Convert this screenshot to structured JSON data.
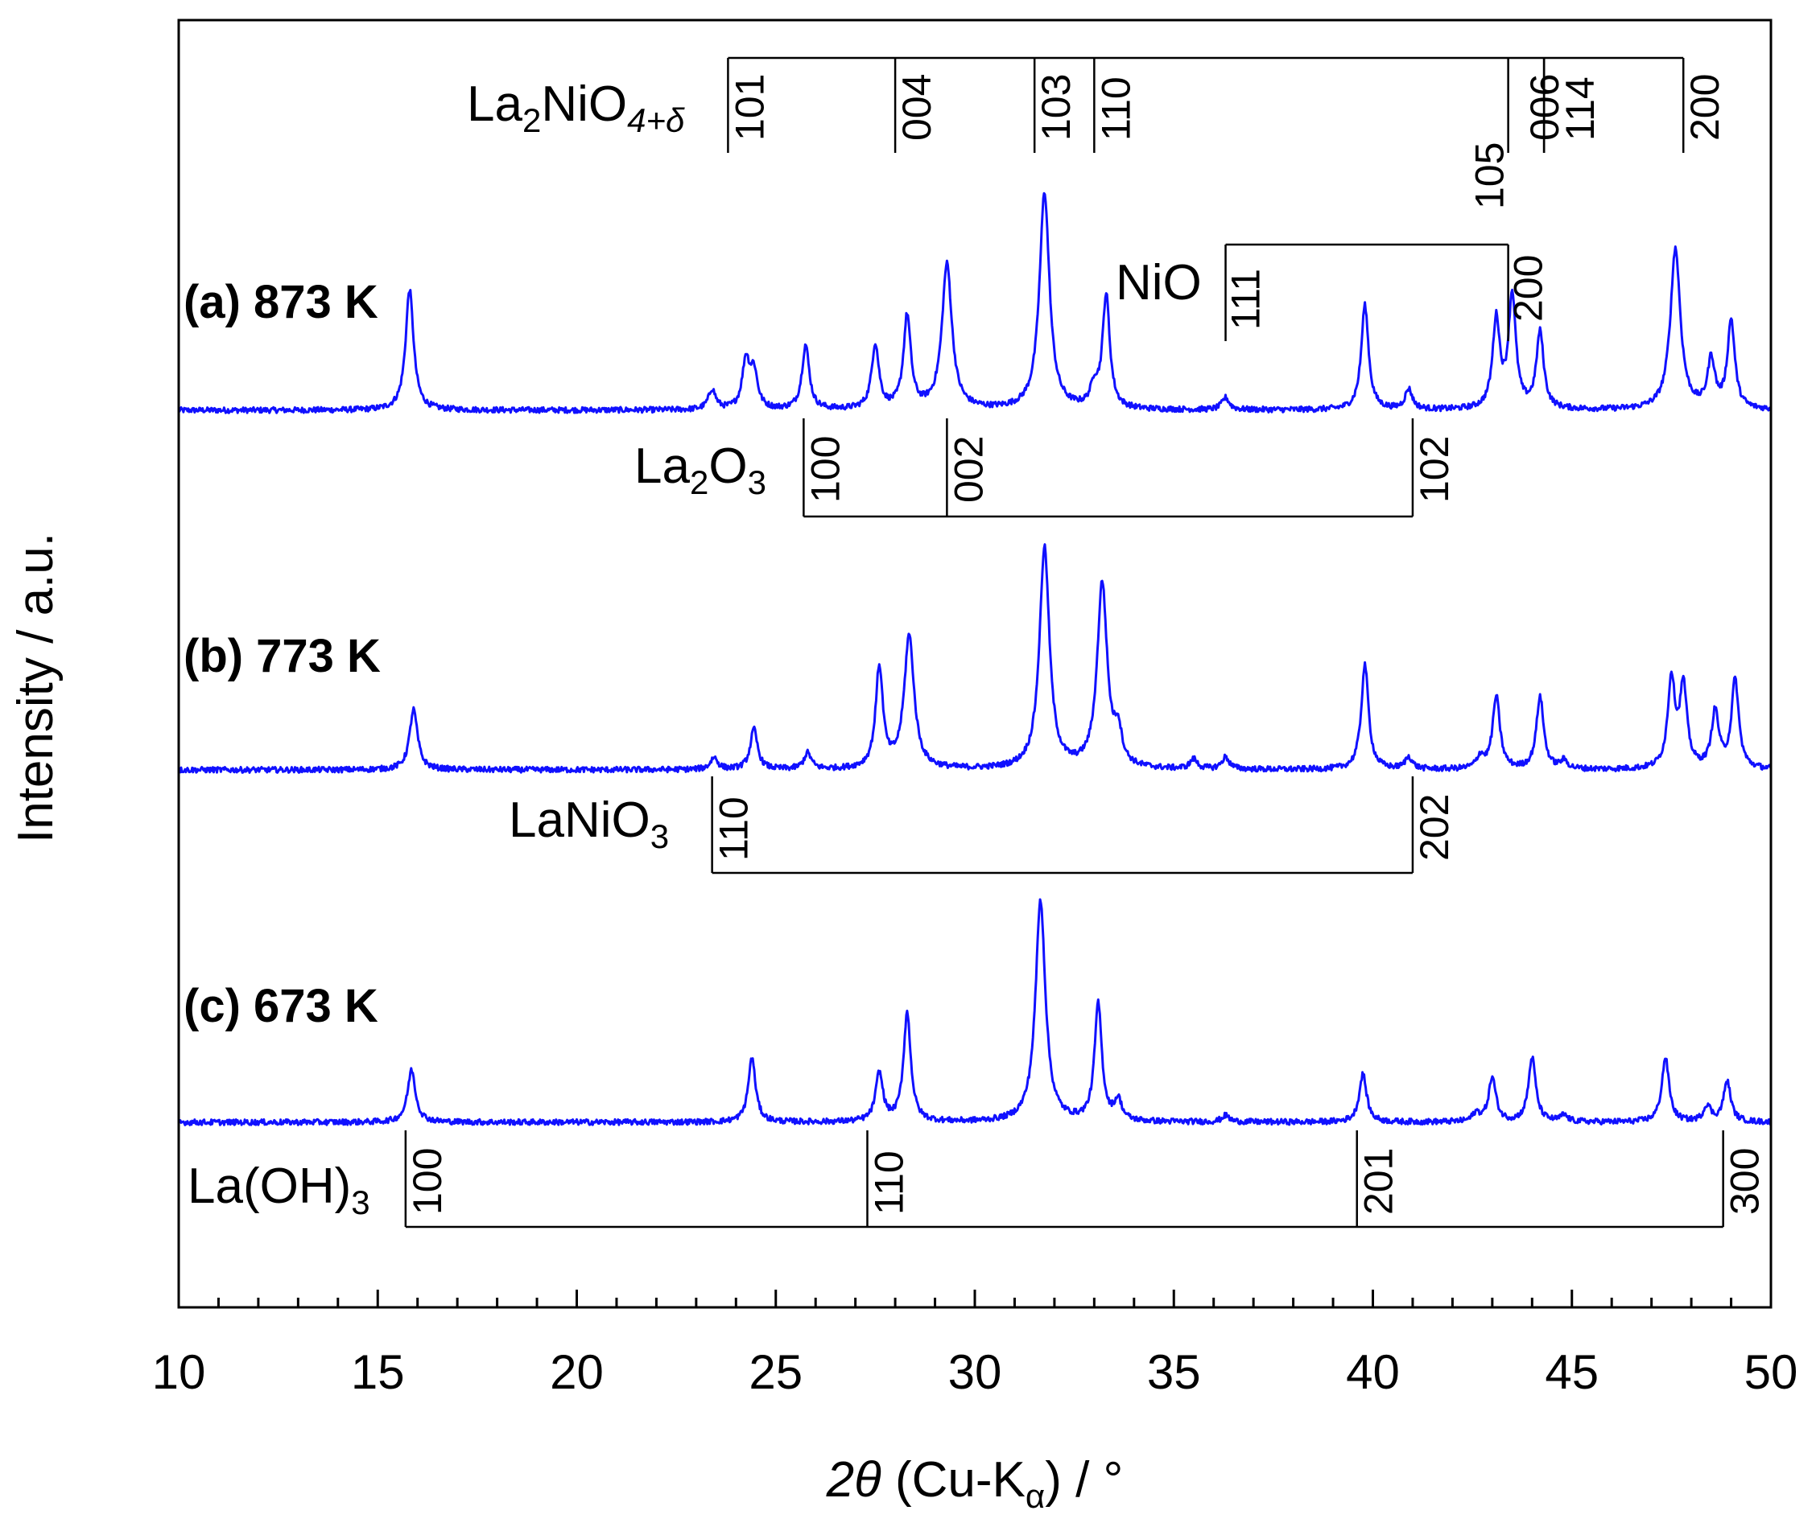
{
  "chart_data": {
    "type": "line",
    "xlabel_parts": {
      "theta": "2θ",
      "mid": " (Cu-K",
      "sub": "α",
      "end": ") / °"
    },
    "ylabel": "Intensity / a.u.",
    "xlim": [
      10,
      50
    ],
    "x_ticks": [
      10,
      15,
      20,
      25,
      30,
      35,
      40,
      45,
      50
    ],
    "y_ticks_shown": false,
    "line_color": "#1010ff",
    "series": [
      {
        "name": "(a) 873 K",
        "peaks": [
          [
            15.8,
            150
          ],
          [
            23.4,
            25
          ],
          [
            24.25,
            60
          ],
          [
            24.45,
            45
          ],
          [
            25.75,
            80
          ],
          [
            27.5,
            80
          ],
          [
            28.3,
            115
          ],
          [
            29.3,
            180
          ],
          [
            31.75,
            270
          ],
          [
            33.3,
            140
          ],
          [
            33.0,
            25
          ],
          [
            36.3,
            15
          ],
          [
            39.8,
            130
          ],
          [
            40.9,
            25
          ],
          [
            43.1,
            110
          ],
          [
            43.5,
            140
          ],
          [
            44.2,
            95
          ],
          [
            47.6,
            200
          ],
          [
            48.5,
            60
          ],
          [
            49.0,
            110
          ]
        ]
      },
      {
        "name": "(b) 773 K",
        "peaks": [
          [
            15.9,
            75
          ],
          [
            23.45,
            15
          ],
          [
            24.45,
            50
          ],
          [
            25.8,
            20
          ],
          [
            27.6,
            125
          ],
          [
            28.35,
            165
          ],
          [
            31.75,
            275
          ],
          [
            33.2,
            230
          ],
          [
            33.6,
            40
          ],
          [
            35.5,
            12
          ],
          [
            36.3,
            15
          ],
          [
            39.8,
            130
          ],
          [
            40.9,
            15
          ],
          [
            42.7,
            15
          ],
          [
            43.1,
            90
          ],
          [
            44.2,
            90
          ],
          [
            44.8,
            10
          ],
          [
            47.5,
            110
          ],
          [
            47.8,
            100
          ],
          [
            48.6,
            70
          ],
          [
            49.1,
            110
          ]
        ]
      },
      {
        "name": "(c) 673 K",
        "peaks": [
          [
            15.85,
            65
          ],
          [
            24.4,
            80
          ],
          [
            27.6,
            60
          ],
          [
            28.3,
            135
          ],
          [
            31.65,
            275
          ],
          [
            33.1,
            145
          ],
          [
            33.6,
            25
          ],
          [
            36.3,
            8
          ],
          [
            39.75,
            60
          ],
          [
            42.6,
            10
          ],
          [
            43.0,
            55
          ],
          [
            44.0,
            80
          ],
          [
            44.8,
            8
          ],
          [
            47.35,
            80
          ],
          [
            48.4,
            20
          ],
          [
            48.9,
            50
          ]
        ]
      }
    ],
    "reference_phases": [
      {
        "phase_label": {
          "main": "La",
          "sub1": "2",
          "mid": "NiO",
          "sub2": "4+δ"
        },
        "lines": [
          [
            23.8,
            "101"
          ],
          [
            28.0,
            "004"
          ],
          [
            31.5,
            "103"
          ],
          [
            33.0,
            "110"
          ],
          [
            43.4,
            "105"
          ],
          [
            44.3,
            "006"
          ],
          [
            44.3,
            "114"
          ],
          [
            47.8,
            "200"
          ]
        ]
      },
      {
        "phase_label": {
          "main": "NiO"
        },
        "lines": [
          [
            36.3,
            "111"
          ],
          [
            43.4,
            "200"
          ]
        ]
      },
      {
        "phase_label": {
          "main": "La",
          "sub1": "2",
          "mid": "O",
          "sub2": "3"
        },
        "lines": [
          [
            25.7,
            "100"
          ],
          [
            29.3,
            "002"
          ],
          [
            41.0,
            "102"
          ]
        ]
      },
      {
        "phase_label": {
          "main": "LaNiO",
          "sub1": "3"
        },
        "lines": [
          [
            23.4,
            "110"
          ],
          [
            41.0,
            "202"
          ]
        ]
      },
      {
        "phase_label": {
          "main": "La(OH)",
          "sub1": "3"
        },
        "lines": [
          [
            15.7,
            "100"
          ],
          [
            27.3,
            "110"
          ],
          [
            39.6,
            "201"
          ],
          [
            48.8,
            "300"
          ]
        ]
      }
    ]
  }
}
